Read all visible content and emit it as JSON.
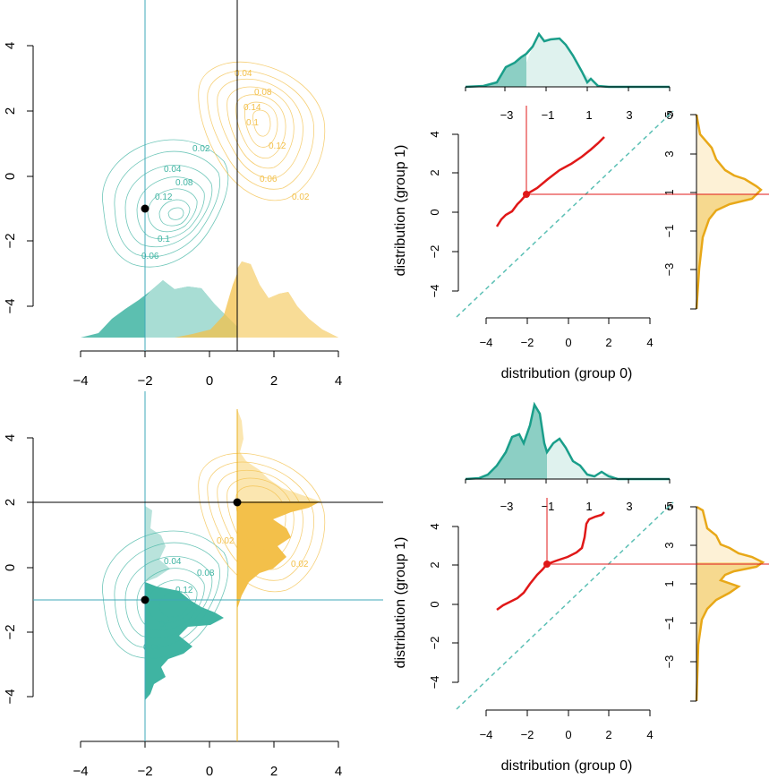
{
  "colors": {
    "teal": "#1a9e8a",
    "teal_fill": "#3fb4a2",
    "teal_light": "#a8ddd4",
    "orange": "#e8a818",
    "orange_fill": "#f3c04a",
    "orange_light": "#f8dc96",
    "red": "#e01818",
    "black": "#000000"
  },
  "chart_data": [
    {
      "type": "contour-density",
      "panel": "top-left",
      "x_ticks": [
        "−4",
        "−2",
        "0",
        "2",
        "4"
      ],
      "y_ticks": [
        "−4",
        "−2",
        "0",
        "2",
        "4"
      ],
      "xlim": [
        -4,
        4
      ],
      "ylim": [
        -5,
        4
      ],
      "group0_center": [
        -1,
        -1
      ],
      "group1_center": [
        1,
        2
      ],
      "group0_contour_labels": [
        "0.02",
        "0.04",
        "0.06",
        "0.08",
        "0.1",
        "0.12"
      ],
      "group1_contour_labels": [
        "0.02",
        "0.04",
        "0.06",
        "0.08",
        "0.1",
        "0.12",
        "0.14"
      ],
      "point": [
        -2,
        -1
      ],
      "vertical_lines_x": [
        -2,
        0.85
      ]
    },
    {
      "type": "line",
      "panel": "top-right",
      "title": "",
      "xlabel": "distribution (group 0)",
      "ylabel": "distribution (group 1)",
      "x_ticks": [
        "−4",
        "−2",
        "0",
        "2",
        "4"
      ],
      "y_ticks": [
        "−4",
        "−2",
        "0",
        "2",
        "4"
      ],
      "top_ticks": [
        "−3",
        "−1",
        "1",
        "3",
        "5"
      ],
      "side_ticks": [
        "5",
        "3",
        "1",
        "−1",
        "−3"
      ],
      "xlim": [
        -5.5,
        5
      ],
      "ylim": [
        -5.5,
        5
      ],
      "curve_x": [
        -3.5,
        -2.5,
        -2,
        -1,
        0,
        1,
        1.8
      ],
      "curve_y": [
        -0.8,
        0.1,
        0.8,
        1.8,
        2.5,
        3.2,
        3.8
      ],
      "point": [
        -2,
        0.8
      ]
    },
    {
      "type": "contour-density",
      "panel": "bottom-left",
      "x_ticks": [
        "−4",
        "−2",
        "0",
        "2",
        "4"
      ],
      "y_ticks": [
        "−4",
        "−2",
        "0",
        "2",
        "4"
      ],
      "xlim": [
        -4,
        4
      ],
      "ylim": [
        -5,
        4
      ],
      "group0_contour_labels": [
        "0.02",
        "0.04",
        "0.06",
        "0.08",
        "0.1",
        "0.12"
      ],
      "group1_contour_labels": [
        "0.02",
        "0.04"
      ],
      "points": [
        [
          -2,
          -1
        ],
        [
          0.85,
          2
        ]
      ],
      "horizontal_lines_y": [
        2,
        -1
      ],
      "vertical_lines_x": [
        -2,
        0.85
      ]
    },
    {
      "type": "line",
      "panel": "bottom-right",
      "title": "",
      "xlabel": "distribution (group 0)",
      "ylabel": "distribution (group 1)",
      "x_ticks": [
        "−4",
        "−2",
        "0",
        "2",
        "4"
      ],
      "y_ticks": [
        "−4",
        "−2",
        "0",
        "2",
        "4"
      ],
      "top_ticks": [
        "−3",
        "−1",
        "1",
        "3",
        "5"
      ],
      "side_ticks": [
        "5",
        "3",
        "1",
        "−1",
        "−3"
      ],
      "xlim": [
        -5.5,
        5
      ],
      "ylim": [
        -5.5,
        5
      ],
      "curve_x": [
        -3.5,
        -2.5,
        -1.5,
        -1,
        0,
        0.7,
        1
      ],
      "curve_y": [
        -0.3,
        0.3,
        1.3,
        2,
        2.6,
        3.3,
        4.6
      ],
      "point": [
        -1,
        2
      ]
    }
  ],
  "labels": {
    "tl_x": [
      "−4",
      "−2",
      "0",
      "2",
      "4"
    ],
    "tl_y": [
      "4",
      "2",
      "0",
      "−2",
      "−4"
    ],
    "bl_x": [
      "−4",
      "−2",
      "0",
      "2",
      "4"
    ],
    "bl_y": [
      "4",
      "2",
      "0",
      "−2",
      "−4"
    ],
    "tr_x": [
      "−4",
      "−2",
      "0",
      "2",
      "4"
    ],
    "tr_y": [
      "4",
      "2",
      "0",
      "−2",
      "−4"
    ],
    "tr_top": [
      "−3",
      "−1",
      "1",
      "3",
      "5"
    ],
    "tr_side": [
      "5",
      "3",
      "1",
      "−1",
      "−3"
    ],
    "br_x": [
      "−4",
      "−2",
      "0",
      "2",
      "4"
    ],
    "br_y": [
      "4",
      "2",
      "0",
      "−2",
      "−4"
    ],
    "br_top": [
      "−3",
      "−1",
      "1",
      "3",
      "5"
    ],
    "br_side": [
      "5",
      "3",
      "1",
      "−1",
      "−3"
    ],
    "xlabel": "distribution (group 0)",
    "ylabel": "distribution (group 1)",
    "contour_g0_tl": [
      "0.02",
      "0.04",
      "0.08",
      "0.12",
      "0.1",
      "0.06"
    ],
    "contour_g1_tl": [
      "0.04",
      "0.08",
      "0.14",
      "0.1",
      "0.12",
      "0.06",
      "0.02"
    ],
    "contour_g0_bl": [
      "0.04",
      "0.08",
      "0.12",
      "0.1",
      "0.06"
    ],
    "contour_g1_bl": [
      "0.02",
      "0.02"
    ]
  }
}
